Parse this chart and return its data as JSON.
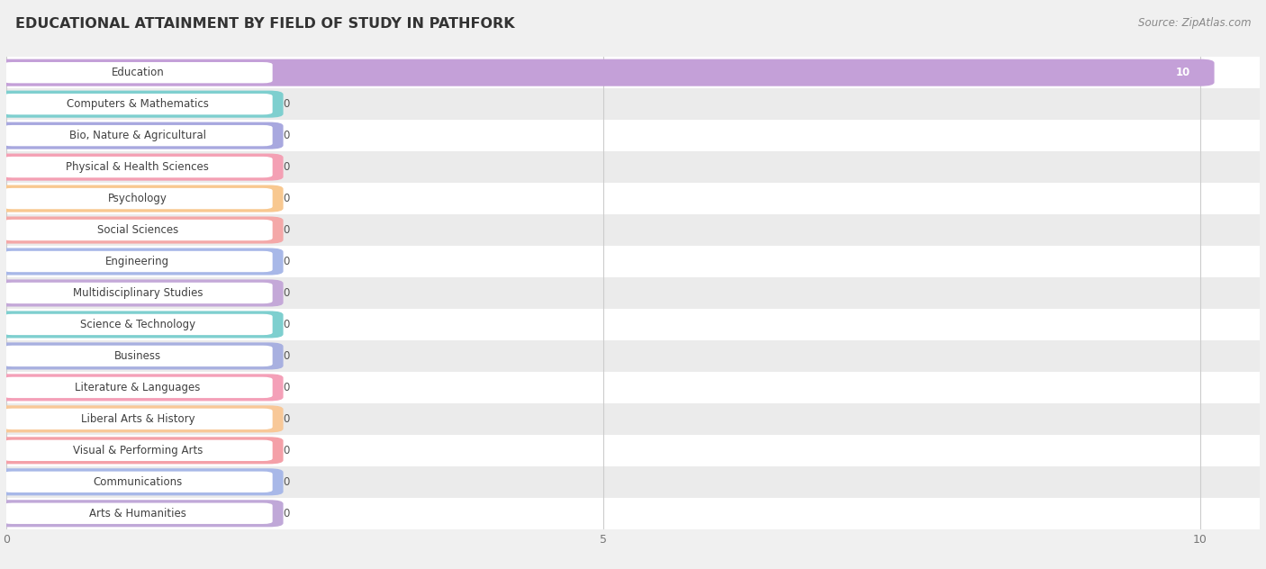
{
  "title": "EDUCATIONAL ATTAINMENT BY FIELD OF STUDY IN PATHFORK",
  "source": "Source: ZipAtlas.com",
  "categories": [
    "Education",
    "Computers & Mathematics",
    "Bio, Nature & Agricultural",
    "Physical & Health Sciences",
    "Psychology",
    "Social Sciences",
    "Engineering",
    "Multidisciplinary Studies",
    "Science & Technology",
    "Business",
    "Literature & Languages",
    "Liberal Arts & History",
    "Visual & Performing Arts",
    "Communications",
    "Arts & Humanities"
  ],
  "values": [
    10,
    0,
    0,
    0,
    0,
    0,
    0,
    0,
    0,
    0,
    0,
    0,
    0,
    0,
    0
  ],
  "bar_colors": [
    "#c4a0d8",
    "#7ecfcf",
    "#a8a8df",
    "#f4a0b4",
    "#f8c890",
    "#f4a8a8",
    "#a8b8e8",
    "#c4a8d8",
    "#7ecfcf",
    "#a8b0e0",
    "#f4a0b8",
    "#f8c898",
    "#f4a0a8",
    "#a8b8e8",
    "#c0a8d8"
  ],
  "xlim": [
    0,
    10.5
  ],
  "xticks": [
    0,
    5,
    10
  ],
  "background_color": "#f0f0f0",
  "row_bg_even": "#ffffff",
  "row_bg_odd": "#ebebeb",
  "title_fontsize": 11.5,
  "bar_height": 0.62,
  "label_fontsize": 8.5,
  "value_fontsize": 8.5
}
